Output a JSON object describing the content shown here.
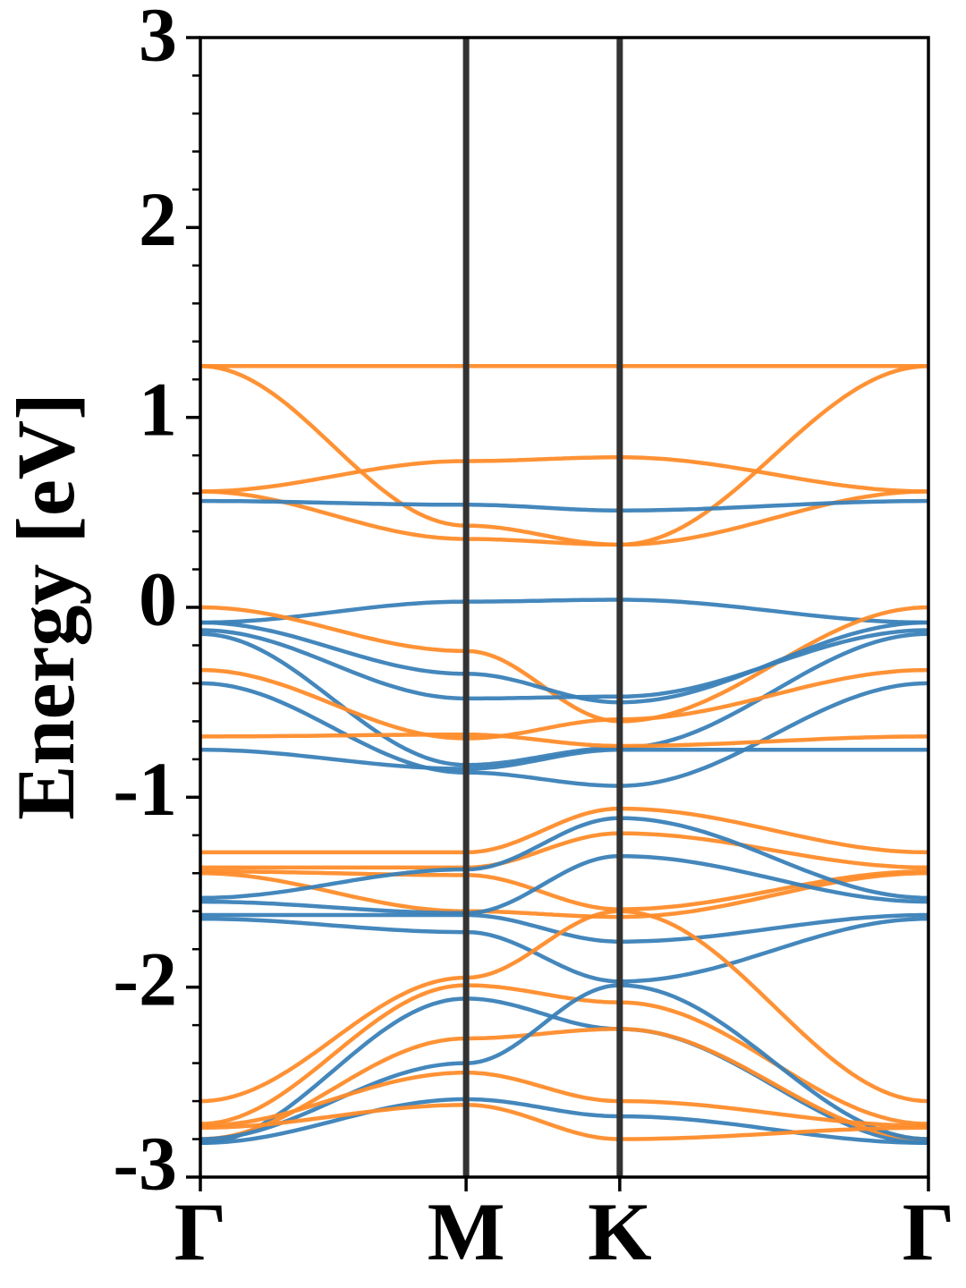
{
  "chart_data": {
    "type": "line",
    "title": "",
    "xlabel": "",
    "ylabel": "Energy [eV]",
    "ylim": [
      -3,
      3
    ],
    "yticks": [
      "3",
      "2",
      "1",
      "0",
      "-1",
      "-2",
      "-3"
    ],
    "ytick_values": [
      3,
      2,
      1,
      0,
      -1,
      -2,
      -3
    ],
    "kpath": [
      {
        "label": "Γ",
        "pos": 0
      },
      {
        "label": "M",
        "pos": 0.365
      },
      {
        "label": "K",
        "pos": 0.576
      },
      {
        "label": "Γ",
        "pos": 1
      }
    ],
    "colors": {
      "spin_up": "#3a81b8",
      "spin_down": "#ff8c2a",
      "kline": "#333333"
    },
    "series": [
      {
        "color": "spin_down",
        "values": [
          1.27,
          1.27,
          1.27,
          1.27
        ]
      },
      {
        "color": "spin_down",
        "values": [
          1.27,
          0.43,
          0.33,
          1.27
        ]
      },
      {
        "color": "spin_down",
        "values": [
          0.61,
          0.77,
          0.79,
          0.61
        ]
      },
      {
        "color": "spin_down",
        "values": [
          0.61,
          0.36,
          0.33,
          0.61
        ]
      },
      {
        "color": "spin_up",
        "values": [
          0.56,
          0.54,
          0.51,
          0.56
        ]
      },
      {
        "color": "spin_up",
        "values": [
          -0.08,
          0.03,
          0.04,
          -0.08
        ]
      },
      {
        "color": "spin_down",
        "values": [
          0.0,
          -0.23,
          -0.6,
          0.0
        ]
      },
      {
        "color": "spin_up",
        "values": [
          -0.08,
          -0.35,
          -0.5,
          -0.08
        ]
      },
      {
        "color": "spin_up",
        "values": [
          -0.12,
          -0.48,
          -0.47,
          -0.12
        ]
      },
      {
        "color": "spin_up",
        "values": [
          -0.14,
          -0.83,
          -0.74,
          -0.14
        ]
      },
      {
        "color": "spin_down",
        "values": [
          -0.33,
          -0.69,
          -0.59,
          -0.33
        ]
      },
      {
        "color": "spin_up",
        "values": [
          -0.4,
          -0.87,
          -0.94,
          -0.4
        ]
      },
      {
        "color": "spin_down",
        "values": [
          -0.68,
          -0.67,
          -0.73,
          -0.68
        ]
      },
      {
        "color": "spin_up",
        "values": [
          -0.75,
          -0.85,
          -0.75,
          -0.75
        ]
      },
      {
        "color": "spin_down",
        "values": [
          -1.29,
          -1.29,
          -1.06,
          -1.29
        ]
      },
      {
        "color": "spin_down",
        "values": [
          -1.37,
          -1.37,
          -1.19,
          -1.37
        ]
      },
      {
        "color": "spin_down",
        "values": [
          -1.39,
          -1.41,
          -1.59,
          -1.39
        ]
      },
      {
        "color": "spin_down",
        "values": [
          -1.4,
          -1.6,
          -1.63,
          -1.4
        ]
      },
      {
        "color": "spin_up",
        "values": [
          -1.53,
          -1.38,
          -1.11,
          -1.53
        ]
      },
      {
        "color": "spin_up",
        "values": [
          -1.55,
          -1.61,
          -1.31,
          -1.55
        ]
      },
      {
        "color": "spin_up",
        "values": [
          -1.62,
          -1.62,
          -1.76,
          -1.62
        ]
      },
      {
        "color": "spin_up",
        "values": [
          -1.64,
          -1.71,
          -1.97,
          -1.64
        ]
      },
      {
        "color": "spin_down",
        "values": [
          -2.6,
          -1.95,
          -1.6,
          -2.6
        ]
      },
      {
        "color": "spin_down",
        "values": [
          -2.72,
          -1.99,
          -2.08,
          -2.72
        ]
      },
      {
        "color": "spin_up",
        "values": [
          -2.82,
          -2.06,
          -2.22,
          -2.82
        ]
      },
      {
        "color": "spin_down",
        "values": [
          -2.8,
          -2.27,
          -2.22,
          -2.8
        ]
      },
      {
        "color": "spin_up",
        "values": [
          -2.8,
          -2.4,
          -1.99,
          -2.8
        ]
      },
      {
        "color": "spin_down",
        "values": [
          -2.73,
          -2.45,
          -2.6,
          -2.73
        ]
      },
      {
        "color": "spin_up",
        "values": [
          -2.82,
          -2.59,
          -2.68,
          -2.82
        ]
      },
      {
        "color": "spin_down",
        "values": [
          -2.74,
          -2.62,
          -2.8,
          -2.74
        ]
      }
    ]
  }
}
